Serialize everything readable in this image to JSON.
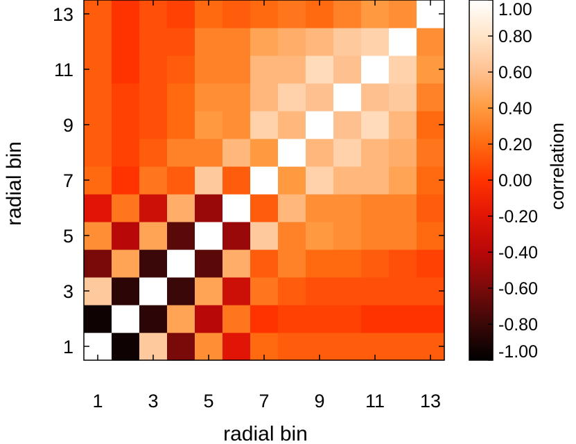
{
  "chart_data": {
    "type": "heatmap",
    "xlabel": "radial bin",
    "ylabel": "radial bin",
    "colorbar_label": "correlation",
    "x_tick_labels": [
      "1",
      "3",
      "5",
      "7",
      "9",
      "11",
      "13"
    ],
    "y_tick_labels": [
      "1",
      "3",
      "5",
      "7",
      "9",
      "11",
      "13"
    ],
    "colorbar_ticks": [
      "1.00",
      "0.80",
      "0.60",
      "0.40",
      "0.20",
      "0.00",
      "-0.20",
      "-0.40",
      "-0.60",
      "-0.80",
      "-1.00"
    ],
    "vmin": -1.0,
    "vmax": 1.0,
    "colormap": [
      "#000000",
      "#3a0808",
      "#7a0a0a",
      "#b80808",
      "#e01505",
      "#ff3300",
      "#ff6a10",
      "#ff9a40",
      "#ffc090",
      "#ffe4c8",
      "#ffffff"
    ],
    "bins": [
      1,
      2,
      3,
      4,
      5,
      6,
      7,
      8,
      9,
      10,
      11,
      12,
      13
    ],
    "matrix": [
      [
        1.0,
        -0.95,
        0.65,
        -0.6,
        0.35,
        -0.2,
        0.2,
        0.15,
        0.15,
        0.15,
        0.15,
        0.15,
        0.15
      ],
      [
        -0.95,
        1.0,
        -0.85,
        0.45,
        -0.4,
        0.25,
        0.0,
        0.05,
        0.05,
        0.05,
        0.0,
        0.0,
        0.0
      ],
      [
        0.65,
        -0.85,
        1.0,
        -0.8,
        0.45,
        -0.3,
        0.25,
        0.15,
        0.1,
        0.1,
        0.1,
        0.1,
        0.1
      ],
      [
        -0.6,
        0.45,
        -0.8,
        1.0,
        -0.7,
        0.5,
        0.15,
        0.3,
        0.2,
        0.2,
        0.15,
        0.1,
        0.05
      ],
      [
        0.35,
        -0.4,
        0.45,
        -0.7,
        1.0,
        -0.5,
        0.65,
        0.3,
        0.4,
        0.35,
        0.3,
        0.3,
        0.2
      ],
      [
        -0.2,
        0.25,
        -0.3,
        0.5,
        -0.5,
        1.0,
        0.15,
        0.55,
        0.35,
        0.35,
        0.3,
        0.3,
        0.15
      ],
      [
        0.2,
        0.0,
        0.25,
        0.15,
        0.65,
        0.15,
        1.0,
        0.4,
        0.7,
        0.55,
        0.55,
        0.45,
        0.2
      ],
      [
        0.15,
        0.05,
        0.15,
        0.3,
        0.3,
        0.55,
        0.4,
        1.0,
        0.55,
        0.7,
        0.55,
        0.5,
        0.25
      ],
      [
        0.15,
        0.05,
        0.1,
        0.2,
        0.4,
        0.35,
        0.7,
        0.55,
        1.0,
        0.6,
        0.75,
        0.55,
        0.2
      ],
      [
        0.15,
        0.05,
        0.1,
        0.2,
        0.35,
        0.35,
        0.55,
        0.7,
        0.6,
        1.0,
        0.6,
        0.65,
        0.3
      ],
      [
        0.15,
        0.0,
        0.1,
        0.15,
        0.3,
        0.3,
        0.55,
        0.55,
        0.75,
        0.6,
        1.0,
        0.7,
        0.4
      ],
      [
        0.15,
        0.0,
        0.1,
        0.1,
        0.3,
        0.3,
        0.45,
        0.5,
        0.55,
        0.65,
        0.7,
        1.0,
        0.35
      ],
      [
        0.15,
        0.0,
        0.1,
        0.05,
        0.2,
        0.15,
        0.2,
        0.25,
        0.2,
        0.3,
        0.4,
        0.35,
        1.0
      ]
    ]
  }
}
